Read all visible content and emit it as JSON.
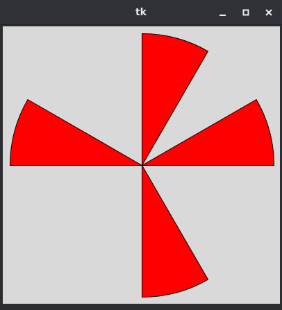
{
  "window": {
    "title": "tk"
  },
  "controls": {
    "minimize": "minimize-icon",
    "maximize": "maximize-icon",
    "close": "close-icon"
  },
  "colors": {
    "canvas_background": "#d9d9d9",
    "wedge_fill": "#ff0000",
    "wedge_outline": "#000000",
    "titlebar": "#2f3136"
  },
  "canvas": {
    "wedges": [
      {
        "start_deg": 0,
        "extent_deg": 30
      },
      {
        "start_deg": 150,
        "extent_deg": 30
      },
      {
        "start_deg": 270,
        "extent_deg": 30
      },
      {
        "start_deg": 60,
        "extent_deg": 30
      }
    ]
  }
}
